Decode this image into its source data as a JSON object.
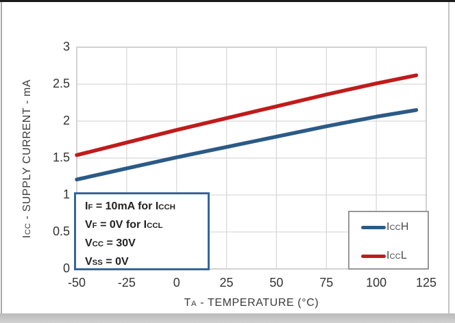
{
  "chart_data": {
    "type": "line",
    "title": "",
    "xlabel": "TA - TEMPERATURE (°C)",
    "ylabel": "ICC - SUPPLY CURRENT - mA",
    "xlim": [
      -50,
      125
    ],
    "ylim": [
      0,
      3
    ],
    "grid": true,
    "legend_position": "lower right",
    "x_ticks": [
      "-50",
      "-25",
      "0",
      "25",
      "50",
      "75",
      "100",
      "125"
    ],
    "y_ticks": [
      "0",
      "0.5",
      "1",
      "1.5",
      "2",
      "2.5",
      "3"
    ],
    "x": [
      -50,
      -25,
      0,
      25,
      50,
      75,
      100,
      120
    ],
    "series": [
      {
        "name": "ICCH",
        "color": "#2B5A87",
        "values": [
          1.21,
          1.36,
          1.51,
          1.65,
          1.79,
          1.93,
          2.06,
          2.15
        ]
      },
      {
        "name": "ICCL",
        "color": "#C01B1B",
        "values": [
          1.54,
          1.71,
          1.88,
          2.04,
          2.2,
          2.36,
          2.51,
          2.62
        ]
      }
    ]
  },
  "axes": {
    "x_title_segments": [
      {
        "t": "T"
      },
      {
        "s": "A"
      },
      {
        "t": " - TEMPERATURE (°C)"
      }
    ],
    "y_title_segments": [
      {
        "t": "I"
      },
      {
        "s": "CC"
      },
      {
        "t": " - SUPPLY CURRENT - mA"
      }
    ]
  },
  "annotation": {
    "border_color": "#336699",
    "lines": [
      [
        {
          "t": "I"
        },
        {
          "s": "F"
        },
        {
          "t": " = 10mA for "
        },
        {
          "t": "I"
        },
        {
          "s": "CCH"
        }
      ],
      [
        {
          "t": "V"
        },
        {
          "s": "F"
        },
        {
          "t": " = 0V for "
        },
        {
          "t": "I"
        },
        {
          "s": "CCL"
        }
      ],
      [
        {
          "t": "V"
        },
        {
          "s": "CC"
        },
        {
          "t": " = 30V"
        }
      ],
      [
        {
          "t": "V"
        },
        {
          "s": "SS"
        },
        {
          "t": " = 0V"
        }
      ]
    ]
  },
  "legend": {
    "items": [
      {
        "label": "ICCH",
        "label_segments": [
          {
            "t": "I"
          },
          {
            "s": "CC"
          },
          {
            "t": "H"
          }
        ],
        "color": "#2B5A87"
      },
      {
        "label": "ICCL",
        "label_segments": [
          {
            "t": "I"
          },
          {
            "s": "CC"
          },
          {
            "t": "L"
          }
        ],
        "color": "#C01B1B"
      }
    ]
  },
  "colors": {
    "grid": "#d9d9d9",
    "plot_border": "#c9c9c9",
    "text": "#3a3a3a",
    "blue_series": "#2B5A87",
    "red_series": "#C01B1B"
  }
}
